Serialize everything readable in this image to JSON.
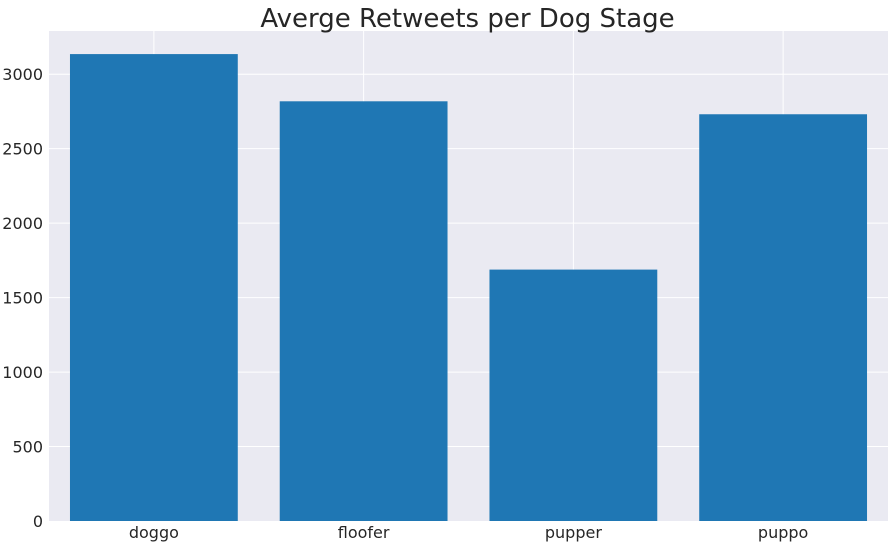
{
  "chart_data": {
    "type": "bar",
    "title": "Averge Retweets per Dog Stage",
    "xlabel": "",
    "ylabel": "",
    "categories": [
      "doggo",
      "floofer",
      "pupper",
      "puppo"
    ],
    "values": [
      3135,
      2818,
      1688,
      2731
    ],
    "ylim": [
      0,
      3290
    ],
    "yticks": [
      0,
      500,
      1000,
      1500,
      2000,
      2500,
      3000
    ],
    "ytick_labels": [
      "0",
      "500",
      "1000",
      "1500",
      "2000",
      "2500",
      "3000"
    ],
    "grid": true,
    "legend": "none",
    "colors": {
      "bar": "#1f77b4",
      "plot_background": "#eaeaf2",
      "grid": "#ffffff",
      "text": "#262626"
    }
  }
}
